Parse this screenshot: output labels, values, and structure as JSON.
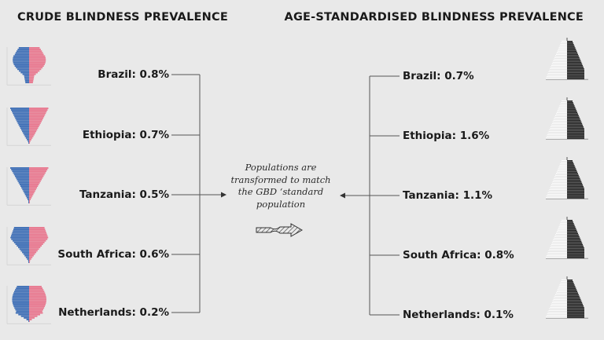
{
  "left": {
    "title": "CRUDE BLINDNESS PREVALENCE",
    "items": [
      {
        "label": "Brazil: 0.8%",
        "shape": "brazil"
      },
      {
        "label": "Ethiopia: 0.7%",
        "shape": "ethiopia"
      },
      {
        "label": "Tanzania: 0.5%",
        "shape": "tanzania"
      },
      {
        "label": "South Africa: 0.6%",
        "shape": "southafrica"
      },
      {
        "label": "Netherlands: 0.2%",
        "shape": "netherlands"
      }
    ]
  },
  "right": {
    "title": "AGE-STANDARDISED BLINDNESS PREVALENCE",
    "items": [
      {
        "label": "Brazil: 0.7%"
      },
      {
        "label": "Ethiopia: 1.6%"
      },
      {
        "label": "Tanzania: 1.1%"
      },
      {
        "label": "South Africa: 0.8%"
      },
      {
        "label": "Netherlands: 0.1%"
      }
    ]
  },
  "center": {
    "caption": "Populations are transformed to match the GBD ‘standard population"
  },
  "colors": {
    "background": "#e9e9e9",
    "male": "#3f6fb6",
    "female": "#e8788f",
    "standard": "#1e1e1e",
    "line": "#555555"
  },
  "icons": {
    "arrow": "hatched-arrow-icon"
  }
}
